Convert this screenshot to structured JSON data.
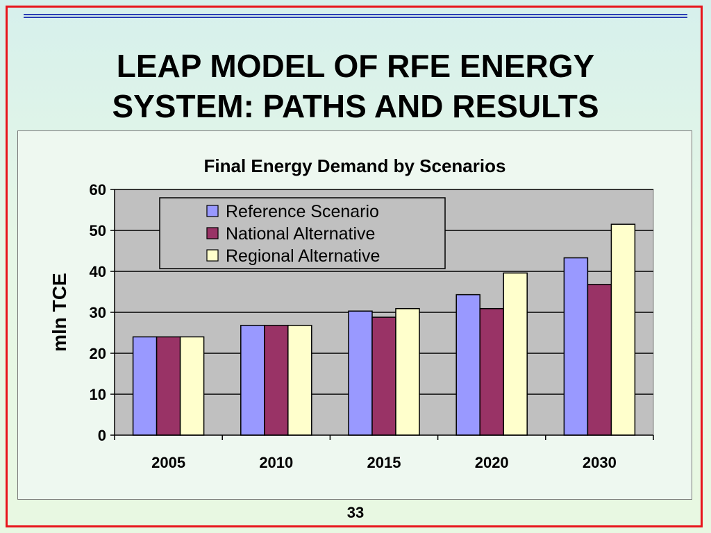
{
  "slide": {
    "title": "LEAP MODEL OF RFE ENERGY\nSYSTEM: PATHS AND RESULTS",
    "page_number": "33"
  },
  "colors": {
    "border": "#e8141b",
    "plot_background": "#c0c0c0",
    "series": [
      "#9999ff",
      "#993366",
      "#ffffcc"
    ]
  },
  "chart_data": {
    "type": "bar",
    "title": "Final Energy Demand by Scenarios",
    "xlabel": "",
    "ylabel": "mln TCE",
    "categories": [
      "2005",
      "2010",
      "2015",
      "2020",
      "2030"
    ],
    "ylim": [
      0,
      60
    ],
    "yticks": [
      0,
      10,
      20,
      30,
      40,
      50,
      60
    ],
    "grid": true,
    "legend_position": "top-left inside plot",
    "series": [
      {
        "name": "Reference Scenario",
        "values": [
          24,
          26.8,
          30.3,
          34.3,
          43.3
        ]
      },
      {
        "name": "National Alternative",
        "values": [
          24,
          26.8,
          28.8,
          30.9,
          36.8
        ]
      },
      {
        "name": "Regional Alternative",
        "values": [
          24,
          26.8,
          30.9,
          39.6,
          51.5
        ]
      }
    ]
  }
}
